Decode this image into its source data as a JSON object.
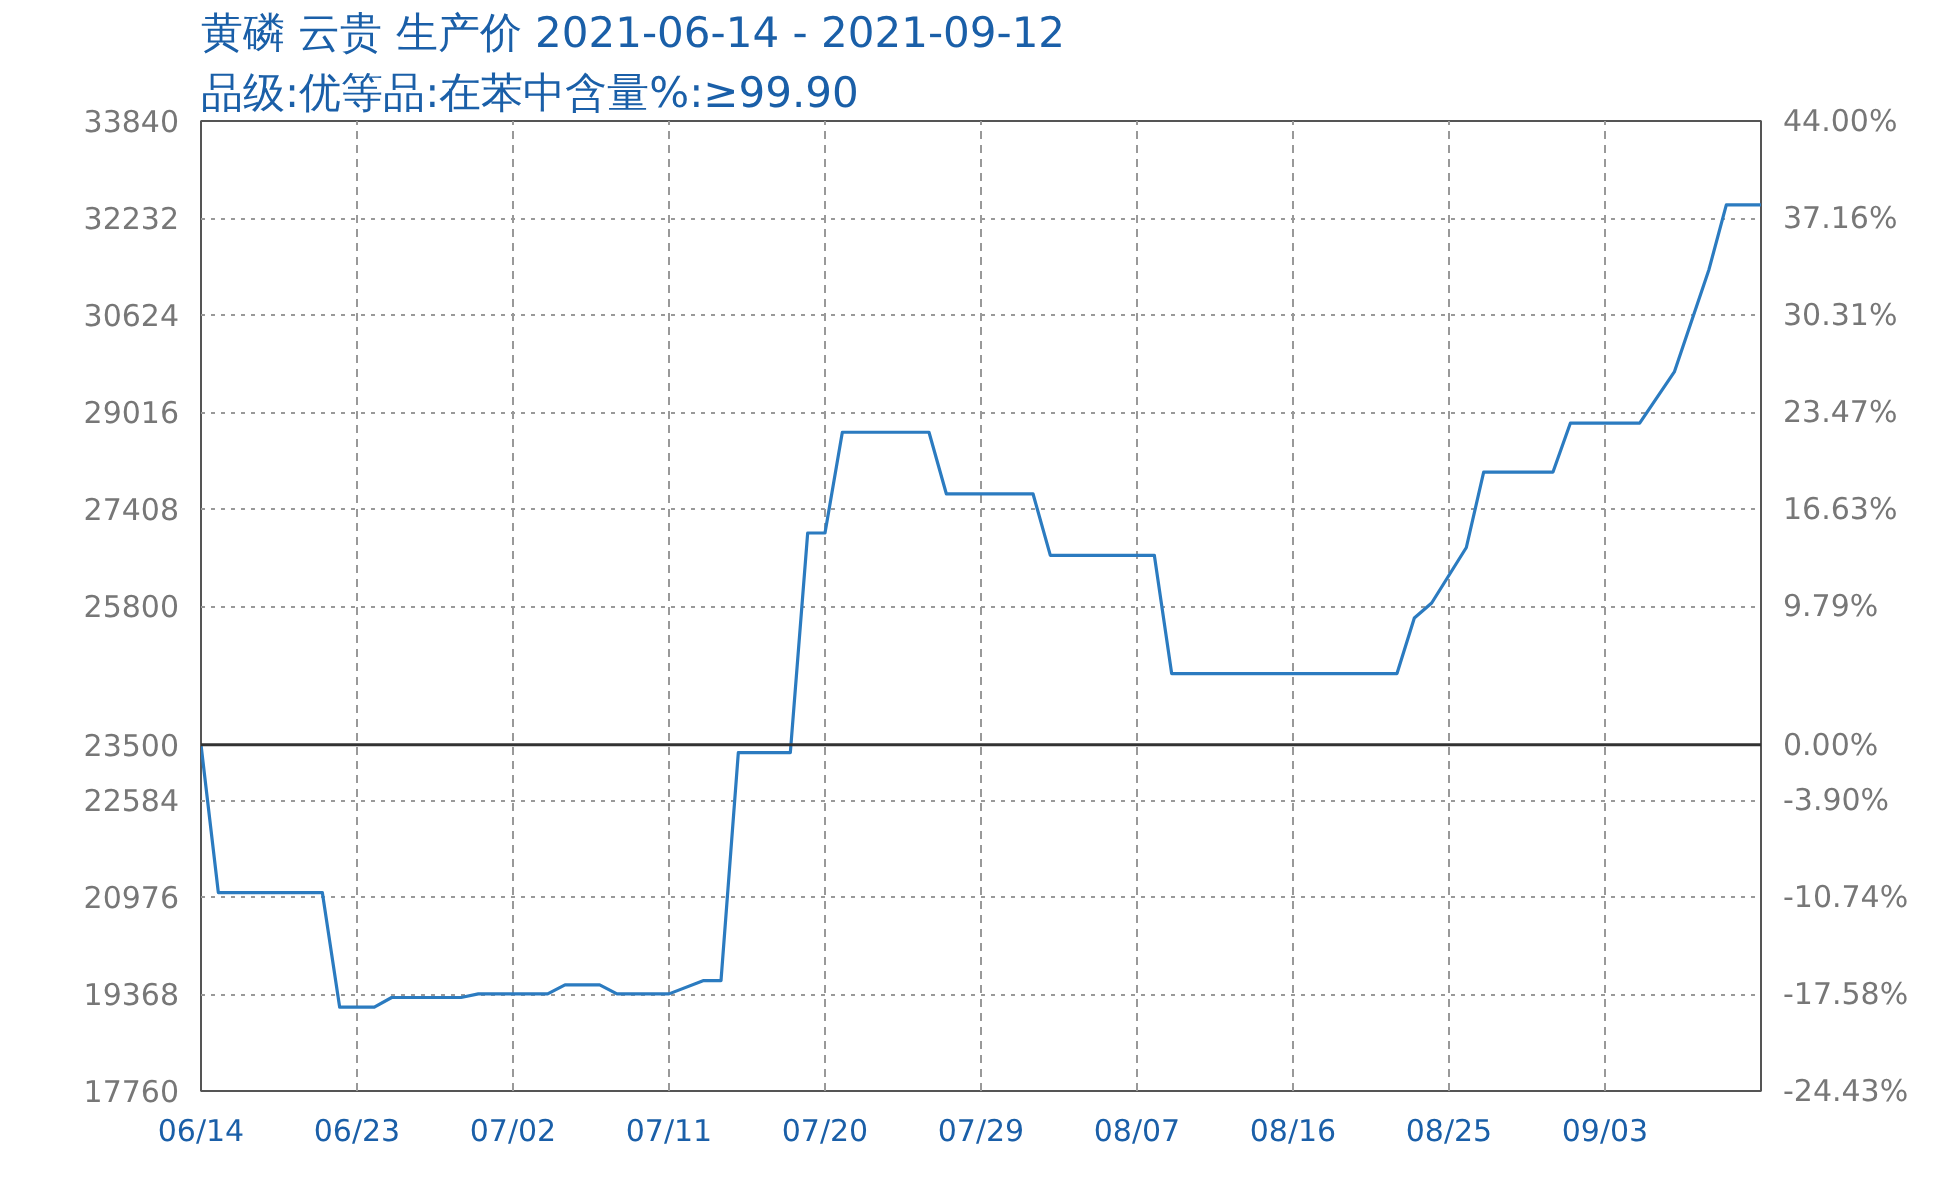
{
  "chart_data": {
    "type": "line",
    "title": "黄磷 云贵 生产价 2021-06-14 - 2021-09-12",
    "subtitle": "品级:优等品:在苯中含量%:≥99.90",
    "x": [
      "2021-06-14",
      "2021-06-15",
      "2021-06-21",
      "2021-06-22",
      "2021-06-24",
      "2021-06-25",
      "2021-06-29",
      "2021-06-30",
      "2021-07-04",
      "2021-07-05",
      "2021-07-07",
      "2021-07-08",
      "2021-07-11",
      "2021-07-13",
      "2021-07-14",
      "2021-07-15",
      "2021-07-18",
      "2021-07-19",
      "2021-07-20",
      "2021-07-21",
      "2021-07-26",
      "2021-07-27",
      "2021-08-01",
      "2021-08-02",
      "2021-08-08",
      "2021-08-09",
      "2021-08-22",
      "2021-08-23",
      "2021-08-24",
      "2021-08-26",
      "2021-08-27",
      "2021-08-31",
      "2021-09-01",
      "2021-09-05",
      "2021-09-07",
      "2021-09-09",
      "2021-09-10",
      "2021-09-12"
    ],
    "series": [
      {
        "color": "#2b7bc0",
        "values": [
          23500,
          21050,
          21050,
          19150,
          19150,
          19310,
          19310,
          19370,
          19370,
          19520,
          19520,
          19370,
          19370,
          19590,
          19590,
          23370,
          23370,
          27010,
          27010,
          28680,
          28680,
          27660,
          27660,
          26640,
          26640,
          24680,
          24680,
          25600,
          25850,
          26770,
          28020,
          28020,
          28830,
          28830,
          29680,
          31380,
          32450,
          32450
        ]
      }
    ],
    "xlim": [
      "2021-06-14",
      "2021-09-12"
    ],
    "xticks": [
      {
        "value": "2021-06-14",
        "label": "06/14"
      },
      {
        "value": "2021-06-23",
        "label": "06/23"
      },
      {
        "value": "2021-07-02",
        "label": "07/02"
      },
      {
        "value": "2021-07-11",
        "label": "07/11"
      },
      {
        "value": "2021-07-20",
        "label": "07/20"
      },
      {
        "value": "2021-07-29",
        "label": "07/29"
      },
      {
        "value": "2021-08-07",
        "label": "08/07"
      },
      {
        "value": "2021-08-16",
        "label": "08/16"
      },
      {
        "value": "2021-08-25",
        "label": "08/25"
      },
      {
        "value": "2021-09-03",
        "label": "09/03"
      }
    ],
    "ylim": [
      17760,
      33840
    ],
    "yticks": [
      17760,
      19368,
      20976,
      22584,
      23500,
      25800,
      27408,
      29016,
      30624,
      32232,
      33840
    ],
    "y2lim": [
      -24.43,
      44.0
    ],
    "y2ticks": [
      {
        "value": -24.43,
        "label": "-24.43%"
      },
      {
        "value": -17.58,
        "label": "-17.58%"
      },
      {
        "value": -10.74,
        "label": "-10.74%"
      },
      {
        "value": -3.9,
        "label": "-3.90%"
      },
      {
        "value": 0,
        "label": "0.00%"
      },
      {
        "value": 9.79,
        "label": "9.79%"
      },
      {
        "value": 16.63,
        "label": "16.63%"
      },
      {
        "value": 23.47,
        "label": "23.47%"
      },
      {
        "value": 30.31,
        "label": "30.31%"
      },
      {
        "value": 37.16,
        "label": "37.16%"
      },
      {
        "value": 44.0,
        "label": "44.00%"
      }
    ],
    "ref_lines": [
      {
        "axis": "y",
        "value": 23500,
        "color": "#333333",
        "line_style": "solid"
      }
    ],
    "grid": true,
    "marker": "none",
    "line_style": "solid"
  }
}
